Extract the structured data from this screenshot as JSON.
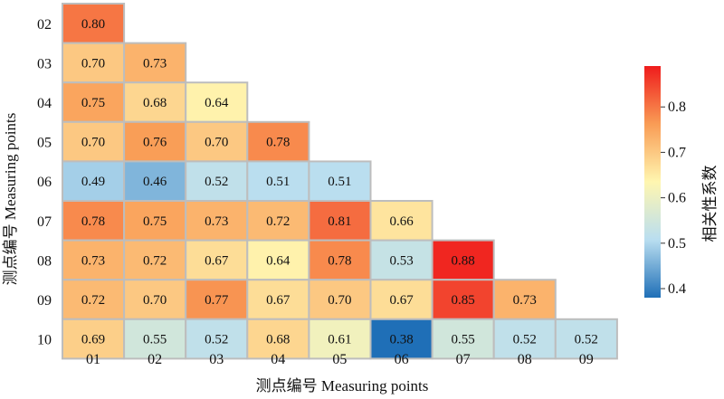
{
  "chart_data": {
    "type": "heatmap",
    "xlabel": "测点编号 Measuring points",
    "ylabel": "测点编号 Measuring points",
    "x_categories": [
      "01",
      "02",
      "03",
      "04",
      "05",
      "06",
      "07",
      "08",
      "09"
    ],
    "y_categories": [
      "02",
      "03",
      "04",
      "05",
      "06",
      "07",
      "08",
      "09",
      "10"
    ],
    "values": [
      [
        0.8,
        null,
        null,
        null,
        null,
        null,
        null,
        null,
        null
      ],
      [
        0.7,
        0.73,
        null,
        null,
        null,
        null,
        null,
        null,
        null
      ],
      [
        0.75,
        0.68,
        0.64,
        null,
        null,
        null,
        null,
        null,
        null
      ],
      [
        0.7,
        0.76,
        0.7,
        0.78,
        null,
        null,
        null,
        null,
        null
      ],
      [
        0.49,
        0.46,
        0.52,
        0.51,
        0.51,
        null,
        null,
        null,
        null
      ],
      [
        0.78,
        0.75,
        0.73,
        0.72,
        0.81,
        0.66,
        null,
        null,
        null
      ],
      [
        0.73,
        0.72,
        0.67,
        0.64,
        0.78,
        0.53,
        0.88,
        null,
        null
      ],
      [
        0.72,
        0.7,
        0.77,
        0.67,
        0.7,
        0.67,
        0.85,
        0.73,
        null
      ],
      [
        0.69,
        0.55,
        0.52,
        0.68,
        0.61,
        0.38,
        0.55,
        0.52,
        0.52
      ]
    ],
    "colorbar": {
      "label": "相关性系数",
      "range": [
        0.38,
        0.89
      ],
      "ticks": [
        "0.4",
        "0.5",
        "0.6",
        "0.7",
        "0.8"
      ],
      "tick_values": [
        0.4,
        0.5,
        0.6,
        0.7,
        0.8
      ],
      "colors": [
        "#1f6fb7",
        "#b9def0",
        "#fff6b0",
        "#f99c55",
        "#ef1c1c"
      ]
    }
  }
}
